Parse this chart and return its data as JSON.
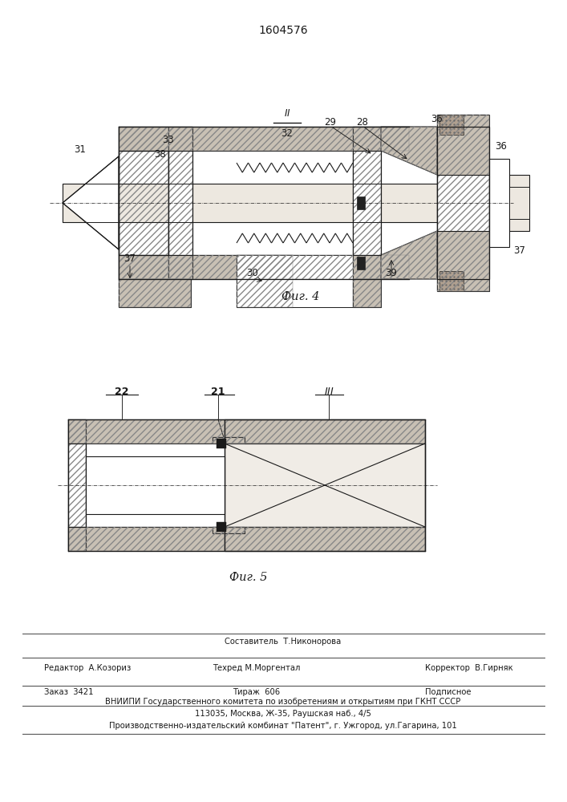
{
  "patent_number": "1604576",
  "fig4_caption": "Фиг. 4",
  "fig5_caption": "Фиг. 5",
  "footer": {
    "sestavitel": "Составитель  Т.Никонорова",
    "line1_left": "Редактор  А.Козориз",
    "line1_center": "Техред М.Моргентал",
    "line1_right": "Корректор  В.Гирняк",
    "line2_left": "Заказ  3421",
    "line2_center": "Тираж  606",
    "line2_right": "Подписное",
    "line3": "ВНИИПИ Государственного комитета по изобретениям и открытиям при ГКНТ СССР",
    "line4": "113035, Москва, Ж-35, Раушская наб., 4/5",
    "line5": "Производственно-издательский комбинат \"Патент\", г. Ужгород, ул.Гагарина, 101"
  },
  "bg_color": "#ffffff",
  "line_color": "#1a1a1a",
  "hatch_fc": "#c8c0b4",
  "shaft_fc": "#ede8e0"
}
